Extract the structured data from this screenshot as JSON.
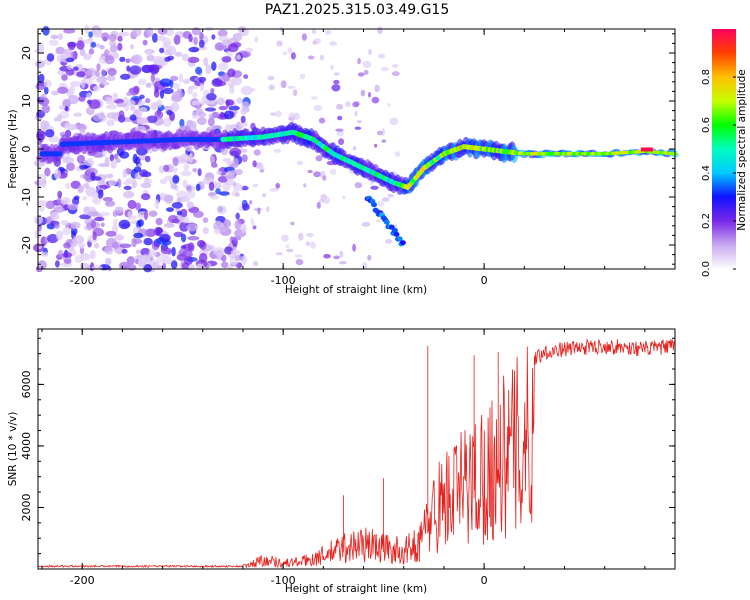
{
  "title": "PAZ1.2025.315.03.49.G15",
  "chart_data": [
    {
      "type": "heatmap",
      "name": "spectrogram",
      "xlabel": "Height of straight line (km)",
      "ylabel": "Frequency (Hz)",
      "xlim": [
        -222,
        95
      ],
      "ylim": [
        -25,
        25
      ],
      "xticks": [
        -200,
        -100,
        0
      ],
      "yticks": [
        -20,
        -10,
        0,
        10,
        20
      ],
      "colorbar": {
        "label": "Normalized spectral amplitude",
        "range": [
          0,
          1
        ],
        "ticks": [
          0.0,
          0.2,
          0.4,
          0.6,
          0.8
        ],
        "colors": [
          "#ffffff",
          "#c8a8f0",
          "#7a28e8",
          "#1010ff",
          "#00c8ff",
          "#00ffc0",
          "#00ff00",
          "#c8ff00",
          "#ffc000",
          "#ff4000",
          "#ff0060"
        ]
      },
      "ridge": {
        "description_points_x": [
          -210,
          -180,
          -150,
          -130,
          -110,
          -95,
          -85,
          -75,
          -65,
          -55,
          -45,
          -38,
          -30,
          -20,
          -10,
          0,
          10,
          20,
          40,
          60,
          80,
          95
        ],
        "description_points_y": [
          1,
          1.5,
          2,
          2,
          2.5,
          3.5,
          2,
          -1,
          -3,
          -5,
          -7,
          -8,
          -4,
          -1,
          0.5,
          0,
          -0.5,
          -1,
          -1,
          -1,
          -0.5,
          -1
        ]
      }
    },
    {
      "type": "line",
      "name": "snr",
      "xlabel": "Height of straight line (km)",
      "ylabel": "SNR (10 * v/v)",
      "xlim": [
        -222,
        95
      ],
      "ylim": [
        0,
        7800
      ],
      "xticks": [
        -200,
        -100,
        0
      ],
      "yticks": [
        2000,
        4000,
        6000
      ],
      "color": "#e8201c",
      "envelope": {
        "x": [
          -222,
          -130,
          -118,
          -110,
          -100,
          -90,
          -80,
          -70,
          -60,
          -50,
          -40,
          -32,
          -25,
          -20,
          -15,
          -10,
          -5,
          0,
          5,
          10,
          15,
          20,
          25,
          30,
          40,
          50,
          60,
          70,
          80,
          95
        ],
        "y": [
          80,
          90,
          150,
          500,
          300,
          400,
          700,
          1100,
          1300,
          1100,
          900,
          1400,
          3000,
          3600,
          3900,
          4300,
          4600,
          5000,
          5400,
          5800,
          6200,
          6600,
          6900,
          7100,
          7200,
          7250,
          7300,
          7250,
          7200,
          7300
        ]
      },
      "spikes": [
        {
          "x": -28,
          "y": 7250
        },
        {
          "x": -5,
          "y": 6950
        },
        {
          "x": 7,
          "y": 7050
        },
        {
          "x": -50,
          "y": 2950
        },
        {
          "x": -70,
          "y": 2400
        }
      ]
    }
  ]
}
